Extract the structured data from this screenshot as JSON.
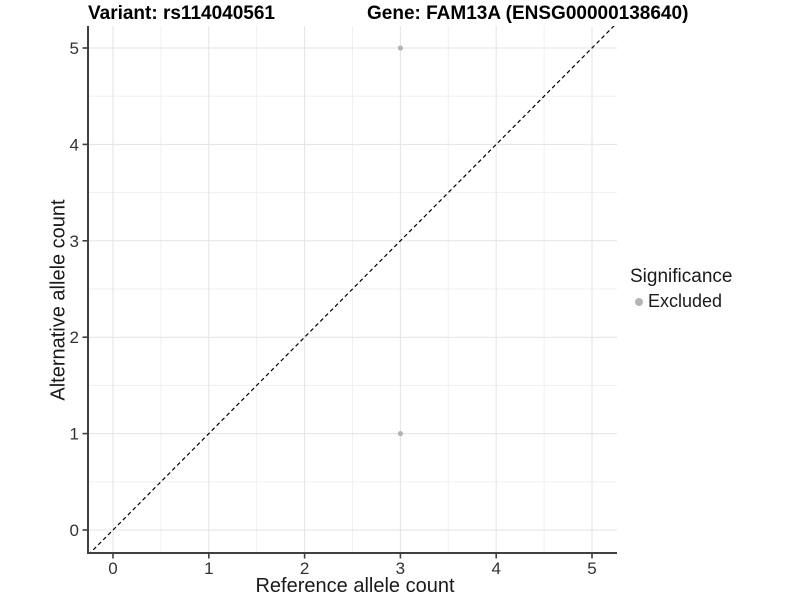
{
  "titles": {
    "variant": "Variant: rs114040561",
    "gene": "Gene: FAM13A (ENSG00000138640)"
  },
  "axes": {
    "x": {
      "label": "Reference allele count",
      "tick_labels": [
        "0",
        "1",
        "2",
        "3",
        "4",
        "5"
      ]
    },
    "y": {
      "label": "Alternative allele count",
      "tick_labels": [
        "0",
        "1",
        "2",
        "3",
        "4",
        "5"
      ]
    }
  },
  "legend": {
    "title": "Significance",
    "items": [
      {
        "label": "Excluded",
        "color": "#b4b4b4"
      }
    ]
  },
  "chart_data": {
    "type": "scatter",
    "title_left": "Variant: rs114040561",
    "title_right": "Gene: FAM13A (ENSG00000138640)",
    "xlabel": "Reference allele count",
    "ylabel": "Alternative allele count",
    "xlim": [
      -0.26,
      5.26
    ],
    "ylim": [
      -0.26,
      5.26
    ],
    "x_ticks": [
      0,
      1,
      2,
      3,
      4,
      5
    ],
    "y_ticks": [
      0,
      1,
      2,
      3,
      4,
      5
    ],
    "grid": "major and minor gridlines, light gray on white",
    "legend_position": "right",
    "series": [
      {
        "name": "Excluded",
        "color": "#b4b4b4",
        "points": [
          {
            "x": 3,
            "y": 5
          },
          {
            "x": 3,
            "y": 1
          }
        ]
      }
    ],
    "reference_line": {
      "type": "identity y=x",
      "style": "dashed",
      "color": "#000000"
    }
  },
  "colors": {
    "background": "#ffffff",
    "grid_major": "#e3e3e3",
    "grid_minor": "#f0f0f0",
    "axis_line": "#404040",
    "tick_text": "#333333",
    "point_excluded": "#b4b4b4"
  }
}
